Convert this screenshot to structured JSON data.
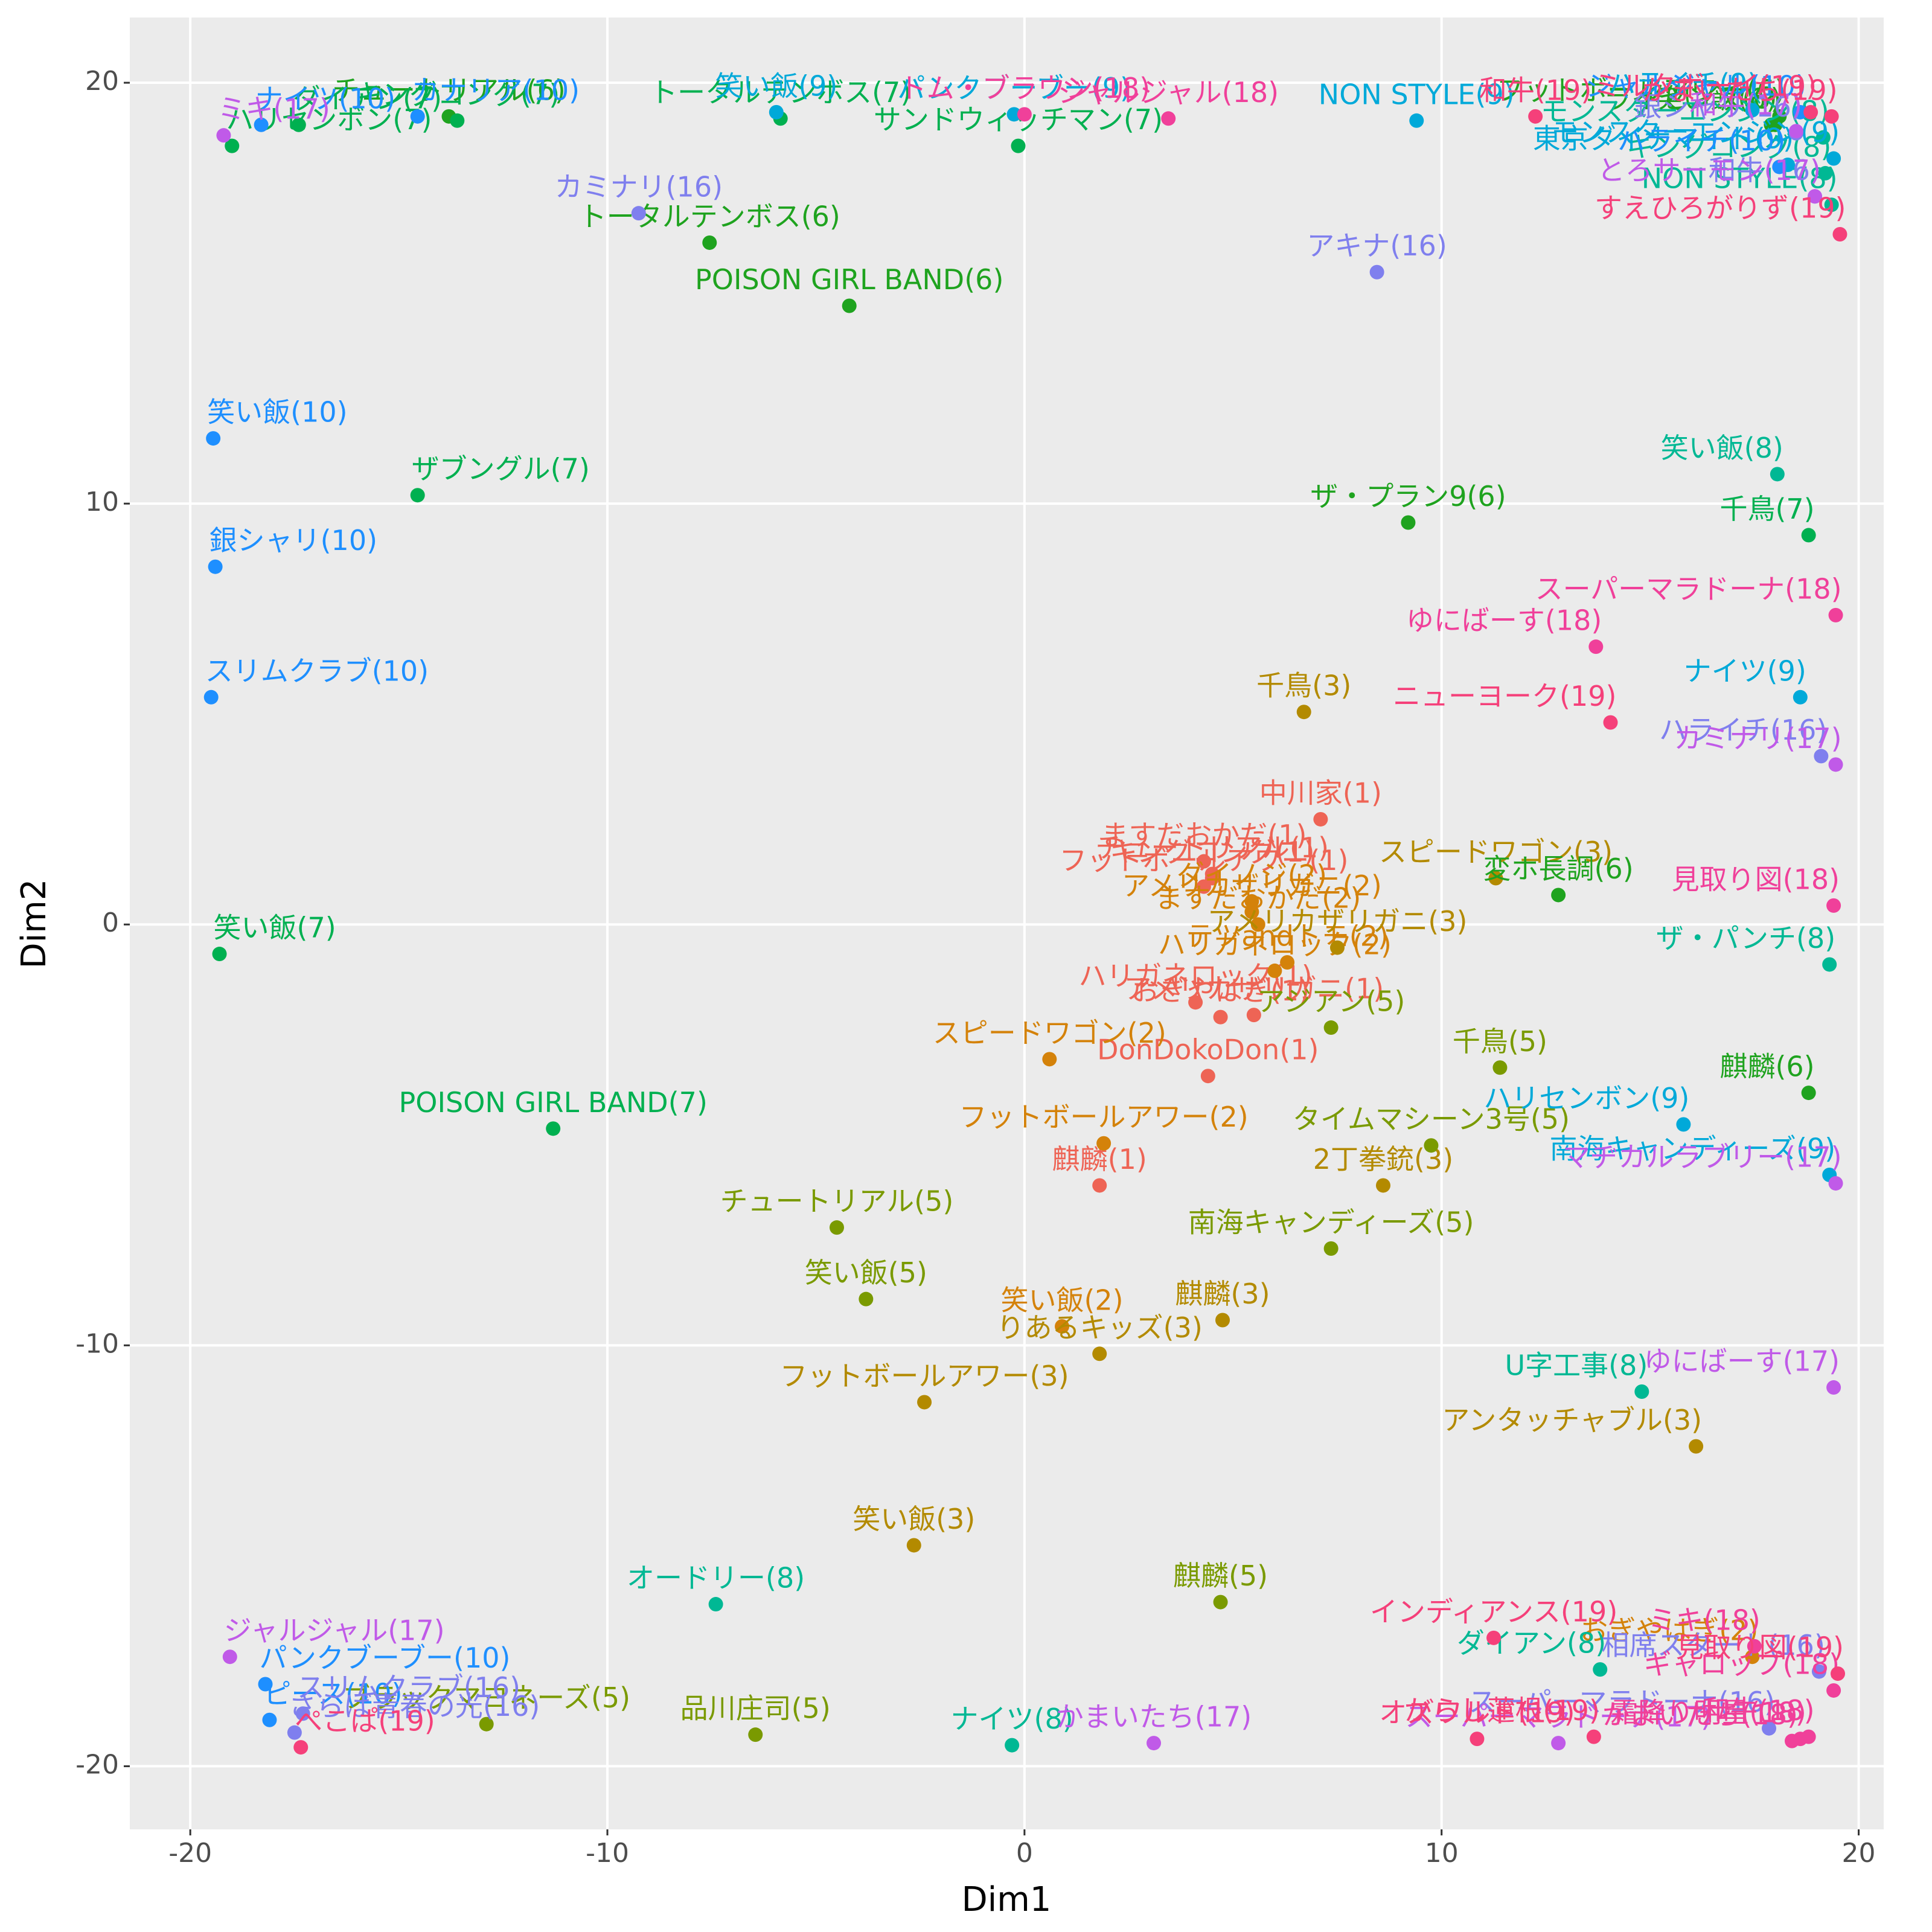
{
  "chart_data": {
    "type": "scatter",
    "x_label": "Dim1",
    "y_label": "Dim2",
    "xlim": [
      -21.45,
      20.6
    ],
    "ylim": [
      -21.5,
      21.55
    ],
    "xticks": [
      -20,
      -10,
      0,
      10,
      20
    ],
    "yticks": [
      -20,
      -10,
      0,
      10,
      20
    ],
    "grid": true,
    "series": [
      {
        "color": "#EE6455",
        "x": [
          4.3,
          4.5,
          4.3,
          4.5,
          7.1,
          4.1,
          4.7,
          5.5,
          4.4,
          1.8
        ],
        "values": [
          1.5,
          1.2,
          0.9,
          1.1,
          2.5,
          -1.85,
          -2.2,
          -2.15,
          -3.6,
          -6.2
        ],
        "labels": [
          "ますだおかだ(1)",
          "チュートリアル(1)",
          "フットボールアワー(1)",
          "キングコング(1)",
          "中川家(1)",
          "ハリガネロック(1)",
          "おぎやはぎ(1)",
          "アメリカザリガニ(1)",
          "DonDokoDon(1)",
          "麒麟(1)"
        ]
      },
      {
        "color": "#D4820A",
        "x": [
          5.45,
          5.45,
          5.6,
          6.3,
          6.0,
          0.6,
          1.9,
          0.9,
          17.45
        ],
        "values": [
          0.55,
          0.3,
          0.0,
          -0.9,
          -1.1,
          -3.2,
          -5.2,
          -9.55,
          -17.4
        ],
        "labels": [
          "ダイノジ(2)",
          "アメリカザリガニ(2)",
          "ますだおかだ(2)",
          "テツandトモ(2)",
          "ハリガネロック(2)",
          "スピードワゴン(2)",
          "フットボールアワー(2)",
          "笑い飯(2)",
          "おぎやはぎ(2)"
        ]
      },
      {
        "color": "#B38A00",
        "x": [
          6.7,
          11.3,
          7.5,
          8.6,
          4.75,
          1.8,
          -2.4,
          -2.65,
          16.1
        ],
        "values": [
          5.05,
          1.1,
          -0.55,
          -6.2,
          -9.4,
          -10.2,
          -11.35,
          -14.75,
          -12.4
        ],
        "labels": [
          "千鳥(3)",
          "スピードワゴン(3)",
          "アメリカザリガニ(3)",
          "2丁拳銃(3)",
          "麒麟(3)",
          "りあるキッズ(3)",
          "フットボールアワー(3)",
          "笑い飯(3)",
          "アンタッチャブル(3)"
        ]
      },
      {
        "color": "#7A9A00",
        "x": [
          7.35,
          11.4,
          9.75,
          -4.5,
          -3.8,
          7.35,
          4.7,
          -12.9,
          -6.45
        ],
        "values": [
          -2.45,
          -3.4,
          -5.25,
          -7.2,
          -8.9,
          -7.7,
          -16.1,
          -19.0,
          -19.25
        ],
        "labels": [
          "アジアン(5)",
          "千鳥(5)",
          "タイムマシーン3号(5)",
          "チュートリアル(5)",
          "笑い飯(5)",
          "南海キャンディーズ(5)",
          "麒麟(5)",
          "ブラックマヨネーズ(5)",
          "品川庄司(5)"
        ]
      },
      {
        "color": "#1FA31F",
        "x": [
          -13.8,
          -7.55,
          -4.2,
          9.2,
          12.8,
          18.8,
          17.9,
          18.1,
          18.0
        ],
        "values": [
          19.2,
          16.2,
          14.7,
          9.55,
          0.7,
          -4.0,
          19.0,
          19.2,
          19.0
        ],
        "labels": [
          "チュートリアル(6)",
          "トータルテンボス(6)",
          "POISON GIRL BAND(6)",
          "ザ・プラン9(6)",
          "変ホ長調(6)",
          "麒麟(6)",
          "笑い飯(6)",
          "フットボールアワー(6)",
          "ライセンス(6)"
        ]
      },
      {
        "color": "#00B050",
        "x": [
          -17.4,
          -19.0,
          -13.6,
          -5.85,
          -0.15,
          -14.55,
          -19.3,
          -11.3,
          18.8
        ],
        "values": [
          19.0,
          18.5,
          19.1,
          19.15,
          18.5,
          10.2,
          -0.7,
          -4.85,
          9.25
        ],
        "labels": [
          "ダイアン(7)",
          "ハリセンボン(7)",
          "キングコング(7)",
          "トータルテンボス(7)",
          "サンドウィッチマン(7)",
          "ザブングル(7)",
          "笑い飯(7)",
          "POISON GIRL BAND(7)",
          "千鳥(7)"
        ]
      },
      {
        "color": "#00B894",
        "x": [
          18.05,
          19.35,
          19.2,
          19.3,
          -7.4,
          13.8,
          14.8,
          -0.3,
          19.15
        ],
        "values": [
          10.7,
          17.1,
          17.85,
          -0.95,
          -16.15,
          -17.7,
          -11.1,
          -19.5,
          18.7
        ],
        "labels": [
          "笑い飯(8)",
          "NON STYLE(8)",
          "キングコング(8)",
          "ザ・パンチ(8)",
          "オードリー(8)",
          "ダイアン(8)",
          "U字工事(8)",
          "ナイツ(8)",
          "モンスターエンジン(8)"
        ]
      },
      {
        "color": "#00A9D9",
        "x": [
          -0.25,
          -5.95,
          9.4,
          17.45,
          18.3,
          19.4,
          18.6,
          15.8,
          19.3
        ],
        "values": [
          19.25,
          19.3,
          19.1,
          19.35,
          18.05,
          18.2,
          5.4,
          -4.75,
          -5.95
        ],
        "labels": [
          "パンクブーブー(9)",
          "笑い飯(9)",
          "NON STYLE(9)",
          "ハライチ(9)",
          "東京ダイナマイト(9)",
          "モンスターエンジン(9)",
          "ナイツ(9)",
          "ハリセンボン(9)",
          "南海キャンディーズ(9)"
        ]
      },
      {
        "color": "#1E8FFF",
        "x": [
          -14.55,
          -18.3,
          -19.45,
          -19.4,
          -19.5,
          -18.2,
          -18.1,
          18.1,
          18.6
        ],
        "values": [
          19.2,
          19.0,
          11.55,
          8.5,
          5.4,
          -18.05,
          -18.9,
          18.0,
          19.3
        ],
        "labels": [
          "カナリア(10)",
          "ナイツ(10)",
          "笑い飯(10)",
          "銀シャリ(10)",
          "スリムクラブ(10)",
          "パンクブーブー(10)",
          "ピース(10)",
          "ハライチ(10)",
          "ジャルジャル(10)"
        ]
      },
      {
        "color": "#7F7FEE",
        "x": [
          -9.25,
          8.45,
          18.5,
          18.95,
          19.1,
          19.05,
          -17.3,
          -17.5,
          17.85
        ],
        "values": [
          16.9,
          15.5,
          18.8,
          17.3,
          4.0,
          -17.75,
          -18.75,
          -19.2,
          -19.1
        ],
        "labels": [
          "カミナリ(16)",
          "アキナ(16)",
          "銀シャリ(16)",
          "和牛(16)",
          "ハライチ(16)",
          "相席スタート(16)",
          "スリムクラブ(16)",
          "さらば青春の光(16)",
          "スーパーマラドーナ(16)"
        ]
      },
      {
        "color": "#C05AE8",
        "x": [
          -19.2,
          19.45,
          19.45,
          19.4,
          -19.05,
          3.1,
          12.8,
          18.5,
          18.95
        ],
        "values": [
          18.75,
          3.8,
          -6.15,
          -11.0,
          -17.4,
          -19.45,
          -19.45,
          18.85,
          17.3
        ],
        "labels": [
          "ミキ(17)",
          "カミナリ(17)",
          "マヂカルラブリー(17)",
          "ゆにばーす(17)",
          "ジャルジャル(17)",
          "かまいたち(17)",
          "スーパーマラドーナ(17)",
          "和牛(17)",
          "とろサーモン(17)"
        ]
      },
      {
        "color": "#F0409A",
        "x": [
          0.0,
          3.45,
          19.45,
          13.7,
          19.4,
          17.5,
          19.4,
          18.4,
          18.8,
          18.6
        ],
        "values": [
          19.25,
          19.15,
          7.35,
          6.6,
          0.45,
          -17.15,
          -18.2,
          -19.4,
          -19.3,
          -19.35
        ],
        "labels": [
          "トム・ブラウン(18)",
          "ジャルジャル(18)",
          "スーパーマラドーナ(18)",
          "ゆにばーす(18)",
          "見取り図(18)",
          "ミキ(18)",
          "ギャロップ(18)",
          "かまいたち(18)",
          "和牛(18)",
          "霜降り明星(18)"
        ]
      },
      {
        "color": "#F5407A",
        "x": [
          12.25,
          19.35,
          18.85,
          19.55,
          14.05,
          11.25,
          10.85,
          13.65,
          19.5,
          -17.35
        ],
        "values": [
          19.2,
          19.2,
          19.3,
          16.4,
          4.8,
          -16.95,
          -19.35,
          -19.3,
          -17.8,
          -19.55
        ],
        "labels": [
          "和牛(19)",
          "かまいたち(19)",
          "ミルクボーイ(19)",
          "すえひろがりず(19)",
          "ニューヨーク(19)",
          "インディアンス(19)",
          "オズワルド(19)",
          "からし蓮根(19)",
          "見取り図(19)",
          "ぺこぱ(19)"
        ]
      }
    ]
  }
}
